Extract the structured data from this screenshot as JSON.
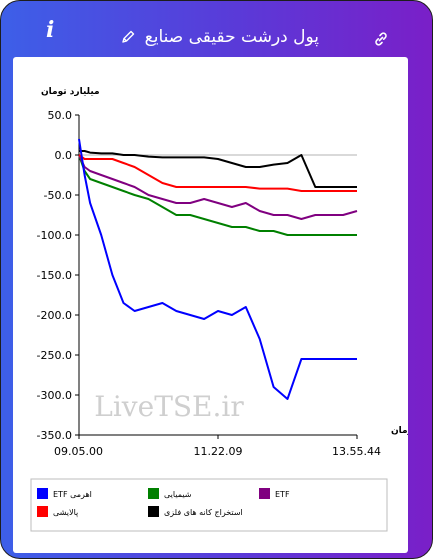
{
  "header": {
    "title": "پول درشت حقیقی صنایع",
    "info_icon": "i",
    "icons": [
      "info-icon",
      "pencil-icon",
      "link-icon"
    ]
  },
  "watermark": "LiveTSE.ir",
  "colors": {
    "header_start": "#3d5fe8",
    "header_end": "#7a1fc8",
    "etf_leveraged": "#0000ff",
    "chemical": "#008000",
    "etf": "#800080",
    "refinery": "#ff0000",
    "metal_mining": "#000000"
  },
  "chart_data": {
    "type": "line",
    "ylabel": "میلیارد تومان",
    "xlabel": "زمان",
    "ylim": [
      -350,
      50
    ],
    "yticks": [
      "50.0",
      "0.0",
      "-50.0",
      "-100.0",
      "-150.0",
      "-200.0",
      "-250.0",
      "-300.0",
      "-350.0"
    ],
    "xticks": [
      "09.05.00",
      "11.22.09",
      "13.55.44"
    ],
    "x": [
      0,
      2,
      4,
      8,
      12,
      16,
      20,
      25,
      30,
      35,
      40,
      45,
      50,
      55,
      60,
      65,
      70,
      75,
      80,
      85,
      90,
      95,
      100
    ],
    "series": [
      {
        "name": "ETF اهرمی",
        "color": "#0000ff",
        "values": [
          20,
          -25,
          -60,
          -100,
          -150,
          -185,
          -195,
          -190,
          -185,
          -195,
          -200,
          -205,
          -195,
          -200,
          -190,
          -230,
          -290,
          -305,
          -255,
          -255,
          -255,
          -255,
          -255
        ]
      },
      {
        "name": "شیمیایی",
        "color": "#008000",
        "values": [
          0,
          -20,
          -30,
          -35,
          -40,
          -45,
          -50,
          -55,
          -65,
          -75,
          -75,
          -80,
          -85,
          -90,
          -90,
          -95,
          -95,
          -100,
          -100,
          -100,
          -100,
          -100,
          -100
        ]
      },
      {
        "name": "ETF",
        "color": "#800080",
        "values": [
          0,
          -15,
          -20,
          -25,
          -30,
          -35,
          -40,
          -50,
          -55,
          -60,
          -60,
          -55,
          -60,
          -65,
          -60,
          -70,
          -75,
          -75,
          -80,
          -75,
          -75,
          -75,
          -70
        ]
      },
      {
        "name": "پالایشی",
        "color": "#ff0000",
        "values": [
          0,
          -5,
          -5,
          -5,
          -5,
          -10,
          -15,
          -25,
          -35,
          -40,
          -40,
          -40,
          -40,
          -40,
          -40,
          -42,
          -42,
          -42,
          -45,
          -45,
          -45,
          -45,
          -45
        ]
      },
      {
        "name": "استخراج کانه های فلزی",
        "color": "#000000",
        "values": [
          5,
          5,
          3,
          2,
          2,
          0,
          0,
          -2,
          -3,
          -3,
          -3,
          -3,
          -5,
          -10,
          -15,
          -15,
          -12,
          -10,
          0,
          -40,
          -40,
          -40,
          -40
        ]
      }
    ],
    "legend": [
      {
        "label": "ETF اهرمی",
        "color": "#0000ff"
      },
      {
        "label": "شیمیایی",
        "color": "#008000"
      },
      {
        "label": "ETF",
        "color": "#800080"
      },
      {
        "label": "پالایشی",
        "color": "#ff0000"
      },
      {
        "label": "استخراج کانه های فلزی",
        "color": "#000000"
      }
    ],
    "legend_position": "bottom",
    "grid": false
  }
}
